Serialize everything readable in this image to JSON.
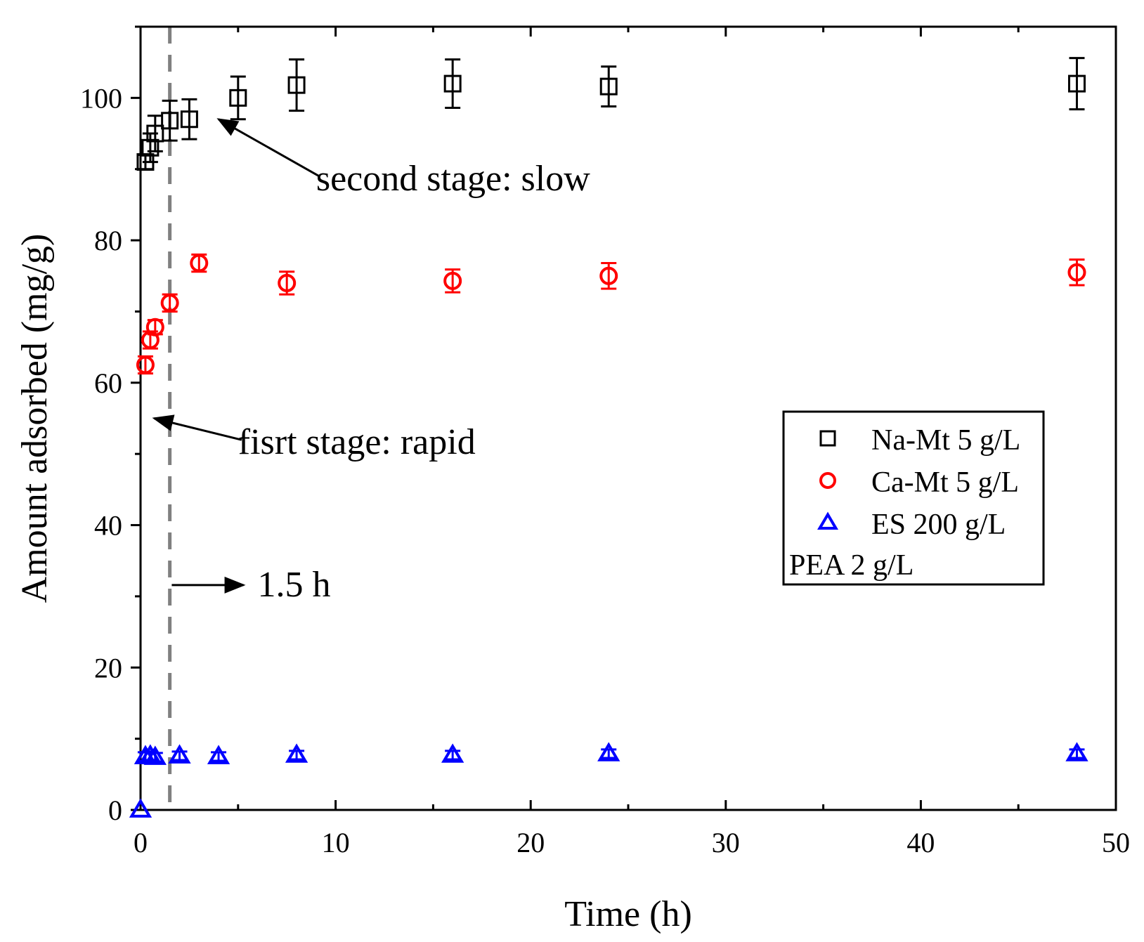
{
  "chart_data": {
    "type": "scatter",
    "title": "",
    "xlabel": "Time (h)",
    "ylabel": "Amount adsorbed (mg/g)",
    "xlim": [
      0,
      50
    ],
    "ylim": [
      0,
      110
    ],
    "x_ticks": [
      0,
      10,
      20,
      30,
      40,
      50
    ],
    "y_ticks": [
      0,
      20,
      40,
      60,
      80,
      100
    ],
    "grid": false,
    "legend_position": "right",
    "legend_note": "PEA 2 g/L",
    "series": [
      {
        "name": "Na-Mt 5 g/L",
        "marker": "square",
        "color": "#000000",
        "points": [
          {
            "x": 0.25,
            "y": 91,
            "err": 1.0
          },
          {
            "x": 0.5,
            "y": 93,
            "err": 2.0
          },
          {
            "x": 0.75,
            "y": 95,
            "err": 2.5
          },
          {
            "x": 1.5,
            "y": 96.8,
            "err": 2.8
          },
          {
            "x": 2.5,
            "y": 97,
            "err": 2.8
          },
          {
            "x": 5,
            "y": 100,
            "err": 3.0
          },
          {
            "x": 8,
            "y": 101.8,
            "err": 3.6
          },
          {
            "x": 16,
            "y": 102,
            "err": 3.4
          },
          {
            "x": 24,
            "y": 101.6,
            "err": 2.8
          },
          {
            "x": 48,
            "y": 102,
            "err": 3.6
          }
        ]
      },
      {
        "name": "Ca-Mt 5 g/L",
        "marker": "circle",
        "color": "#ff0000",
        "points": [
          {
            "x": 0.25,
            "y": 62.5,
            "err": 1.2
          },
          {
            "x": 0.5,
            "y": 66,
            "err": 1.2
          },
          {
            "x": 0.75,
            "y": 67.8,
            "err": 1.0
          },
          {
            "x": 1.5,
            "y": 71.2,
            "err": 1.2
          },
          {
            "x": 3,
            "y": 76.8,
            "err": 1.2
          },
          {
            "x": 7.5,
            "y": 74,
            "err": 1.6
          },
          {
            "x": 16,
            "y": 74.3,
            "err": 1.6
          },
          {
            "x": 24,
            "y": 75,
            "err": 1.8
          },
          {
            "x": 48,
            "y": 75.5,
            "err": 1.8
          }
        ]
      },
      {
        "name": "ES 200 g/L",
        "marker": "triangle",
        "color": "#0000ff",
        "points": [
          {
            "x": 0,
            "y": 0,
            "err": 0
          },
          {
            "x": 0.25,
            "y": 7.5,
            "err": 0.6
          },
          {
            "x": 0.5,
            "y": 7.6,
            "err": 0.6
          },
          {
            "x": 0.75,
            "y": 7.4,
            "err": 0.6
          },
          {
            "x": 2,
            "y": 7.6,
            "err": 0.6
          },
          {
            "x": 4,
            "y": 7.5,
            "err": 0.6
          },
          {
            "x": 8,
            "y": 7.7,
            "err": 0.6
          },
          {
            "x": 16,
            "y": 7.7,
            "err": 0.6
          },
          {
            "x": 24,
            "y": 7.9,
            "err": 0.6
          },
          {
            "x": 48,
            "y": 7.9,
            "err": 0.6
          }
        ]
      }
    ],
    "vertical_line": {
      "x": 1.5,
      "style": "dashed",
      "color": "#808080"
    },
    "annotations": [
      {
        "text": "second stage: slow",
        "target_x": 4,
        "target_y": 97,
        "text_x": 9,
        "text_y": 87
      },
      {
        "text": "fisrt stage: rapid",
        "target_x": 0.7,
        "target_y": 55,
        "text_x": 5,
        "text_y": 50
      },
      {
        "text": "1.5 h",
        "target_x": 1.6,
        "target_y": 32,
        "text_x": 6,
        "text_y": 30
      }
    ]
  }
}
